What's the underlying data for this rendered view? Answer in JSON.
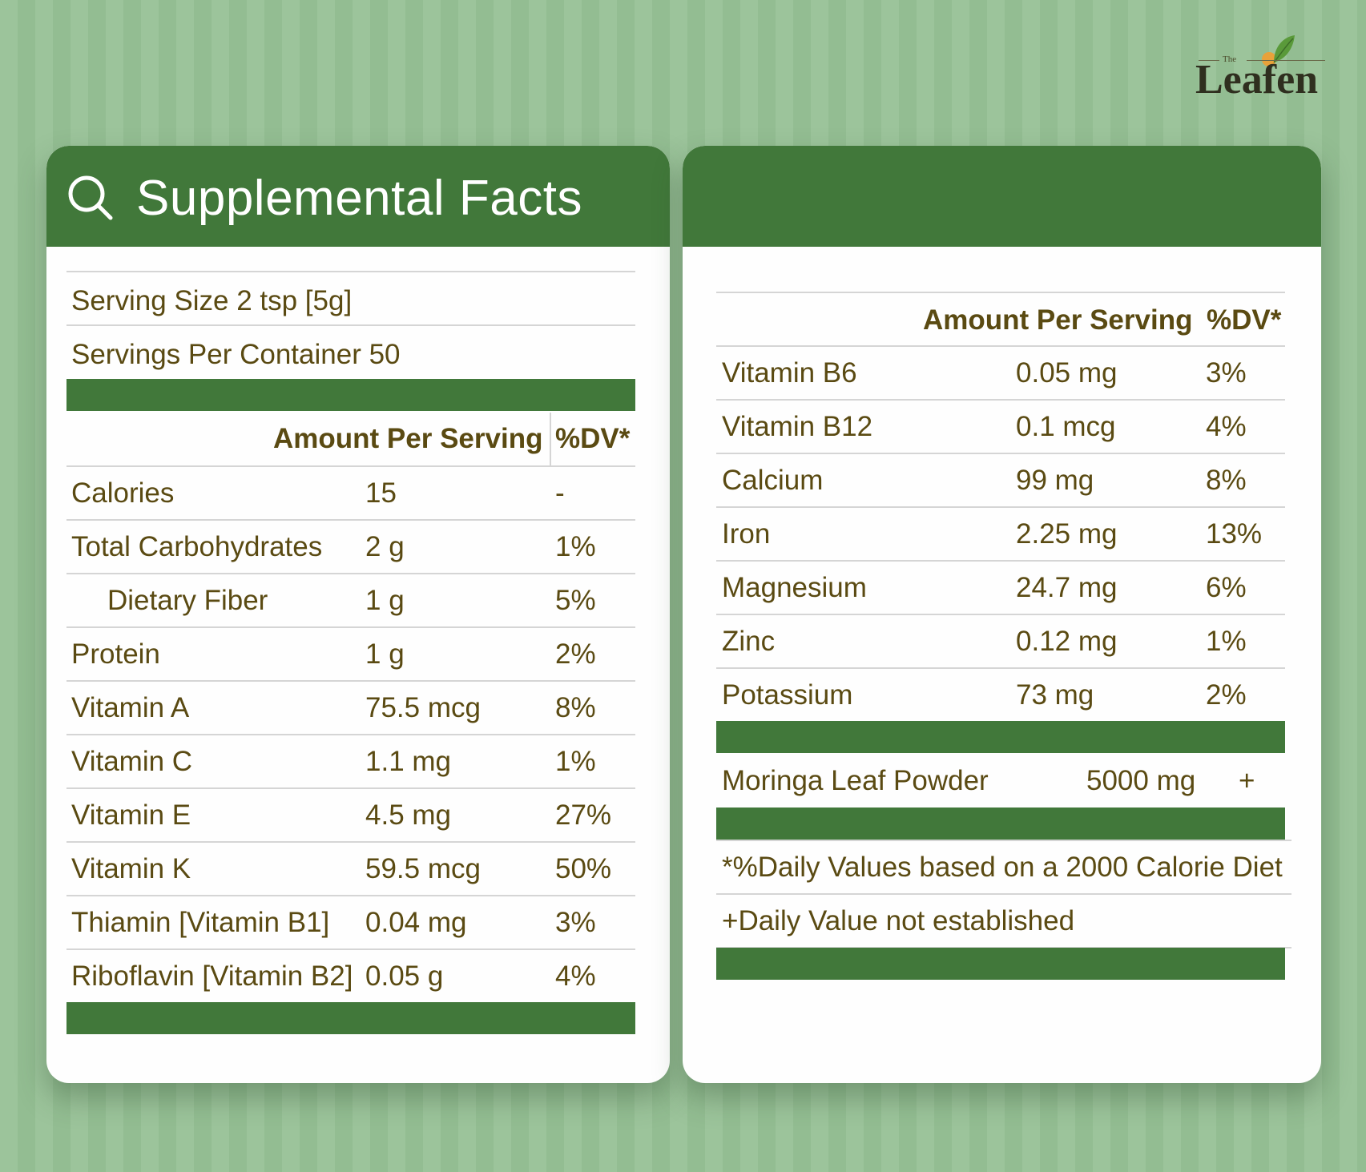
{
  "brand": {
    "prefix": "The",
    "name": "Leafen"
  },
  "left_card": {
    "title": "Supplemental Facts",
    "serving_size": "Serving Size 2 tsp [5g]",
    "servings_per_container": "Servings Per Container 50",
    "header_amount": "Amount Per Serving",
    "header_dv": "%DV*",
    "rows": [
      {
        "name": "Calories",
        "amount": "15",
        "dv": "-"
      },
      {
        "name": "Total Carbohydrates",
        "amount": "2 g",
        "dv": "1%"
      },
      {
        "name": "Dietary Fiber",
        "amount": "1 g",
        "dv": "5%"
      },
      {
        "name": "Protein",
        "amount": "1 g",
        "dv": "2%"
      },
      {
        "name": "Vitamin A",
        "amount": "75.5 mcg",
        "dv": "8%"
      },
      {
        "name": "Vitamin C",
        "amount": "1.1 mg",
        "dv": "1%"
      },
      {
        "name": "Vitamin E",
        "amount": "4.5 mg",
        "dv": "27%"
      },
      {
        "name": "Vitamin K",
        "amount": "59.5 mcg",
        "dv": "50%"
      },
      {
        "name": "Thiamin [Vitamin B1]",
        "amount": "0.04 mg",
        "dv": "3%"
      },
      {
        "name": "Riboflavin [Vitamin B2]",
        "amount": "0.05 g",
        "dv": "4%"
      }
    ]
  },
  "right_card": {
    "header_amount": "Amount Per Serving",
    "header_dv": "%DV*",
    "rows": [
      {
        "name": "Vitamin B6",
        "amount": "0.05 mg",
        "dv": "3%"
      },
      {
        "name": "Vitamin B12",
        "amount": "0.1 mcg",
        "dv": "4%"
      },
      {
        "name": "Calcium",
        "amount": "99 mg",
        "dv": "8%"
      },
      {
        "name": "Iron",
        "amount": "2.25 mg",
        "dv": "13%"
      },
      {
        "name": "Magnesium",
        "amount": "24.7 mg",
        "dv": "6%"
      },
      {
        "name": "Zinc",
        "amount": "0.12 mg",
        "dv": "1%"
      },
      {
        "name": "Potassium",
        "amount": "73 mg",
        "dv": "2%"
      }
    ],
    "moringa": {
      "name": "Moringa Leaf Powder",
      "amount": "5000 mg",
      "dv": "+"
    },
    "footnote_dv": "*%Daily Values based on a 2000 Calorie Diet",
    "footnote_plus": "+Daily Value not established"
  },
  "colors": {
    "green": "#41783a",
    "text": "#5a4a12",
    "background": "#9cc49b"
  }
}
